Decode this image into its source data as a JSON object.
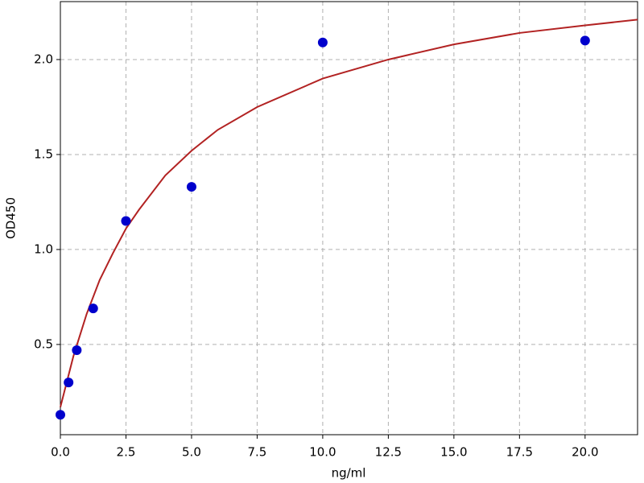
{
  "chart_data": {
    "type": "scatter",
    "xlabel": "ng/ml",
    "ylabel": "OD450",
    "points": {
      "color": "#0000cc",
      "x": [
        0,
        0.3125,
        0.625,
        1.25,
        2.5,
        5,
        10,
        20
      ],
      "values": [
        0.13,
        0.3,
        0.47,
        0.69,
        1.15,
        1.33,
        2.09,
        2.1
      ]
    },
    "curve": {
      "color": "#b22222",
      "x": [
        0,
        0.5,
        1,
        1.5,
        2,
        2.5,
        3,
        4,
        5,
        6,
        7.5,
        10,
        12.5,
        15,
        17.5,
        20,
        22
      ],
      "values": [
        0.17,
        0.44,
        0.66,
        0.84,
        0.98,
        1.11,
        1.21,
        1.39,
        1.52,
        1.63,
        1.75,
        1.9,
        2.0,
        2.08,
        2.14,
        2.18,
        2.21
      ]
    },
    "xlim": [
      0,
      22
    ],
    "ylim": [
      0.025,
      2.305
    ],
    "xticks": [
      {
        "value": 0,
        "label": "0.0"
      },
      2.5,
      {
        "value": 5,
        "label": "5.0"
      },
      7.5,
      {
        "value": 10,
        "label": "10.0"
      },
      12.5,
      {
        "value": 15,
        "label": "15.0"
      },
      17.5,
      {
        "value": 20,
        "label": "20.0"
      }
    ],
    "yticks": [
      0.5,
      {
        "value": 1,
        "label": "1.0"
      },
      1.5,
      {
        "value": 2,
        "label": "2.0"
      }
    ],
    "grid": true
  }
}
